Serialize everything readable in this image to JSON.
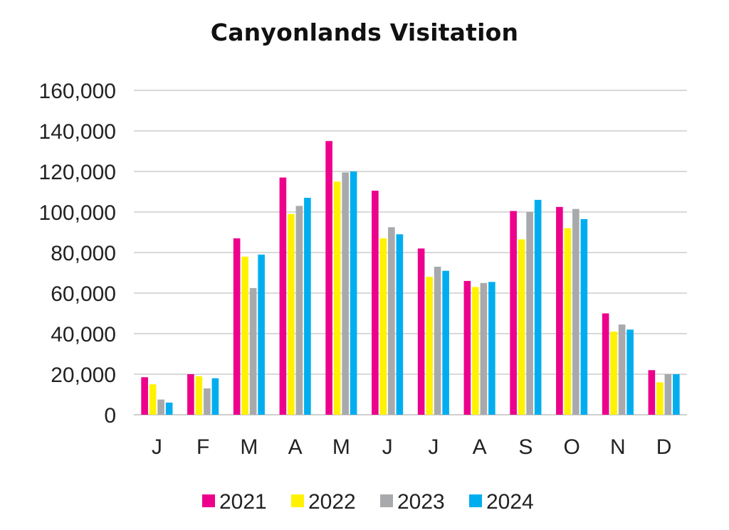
{
  "chart_data": {
    "type": "bar",
    "title": "Canyonlands Visitation",
    "xlabel": "",
    "ylabel": "",
    "categories": [
      "J",
      "F",
      "M",
      "A",
      "M",
      "J",
      "J",
      "A",
      "S",
      "O",
      "N",
      "D"
    ],
    "series": [
      {
        "name": "2021",
        "color": "#ec008c",
        "values": [
          18500,
          20000,
          87000,
          117000,
          135000,
          110500,
          82000,
          66000,
          100500,
          102500,
          50000,
          22000
        ]
      },
      {
        "name": "2022",
        "color": "#fff200",
        "values": [
          15000,
          19000,
          78000,
          99000,
          115000,
          87000,
          68000,
          63000,
          86500,
          92000,
          41000,
          16000
        ]
      },
      {
        "name": "2023",
        "color": "#a7a9ac",
        "values": [
          7500,
          13000,
          62500,
          103000,
          119500,
          92500,
          73000,
          65000,
          100000,
          101500,
          44500,
          20000
        ]
      },
      {
        "name": "2024",
        "color": "#00aeef",
        "values": [
          6000,
          18000,
          79000,
          107000,
          120000,
          89000,
          71000,
          65500,
          106000,
          96500,
          42000,
          20000
        ]
      }
    ],
    "y_ticks": [
      "0",
      "20,000",
      "40,000",
      "60,000",
      "80,000",
      "100,000",
      "120,000",
      "140,000",
      "160,000"
    ],
    "ylim": [
      0,
      160000
    ],
    "ytick_step": 20000,
    "grid": true,
    "legend_position": "bottom"
  }
}
